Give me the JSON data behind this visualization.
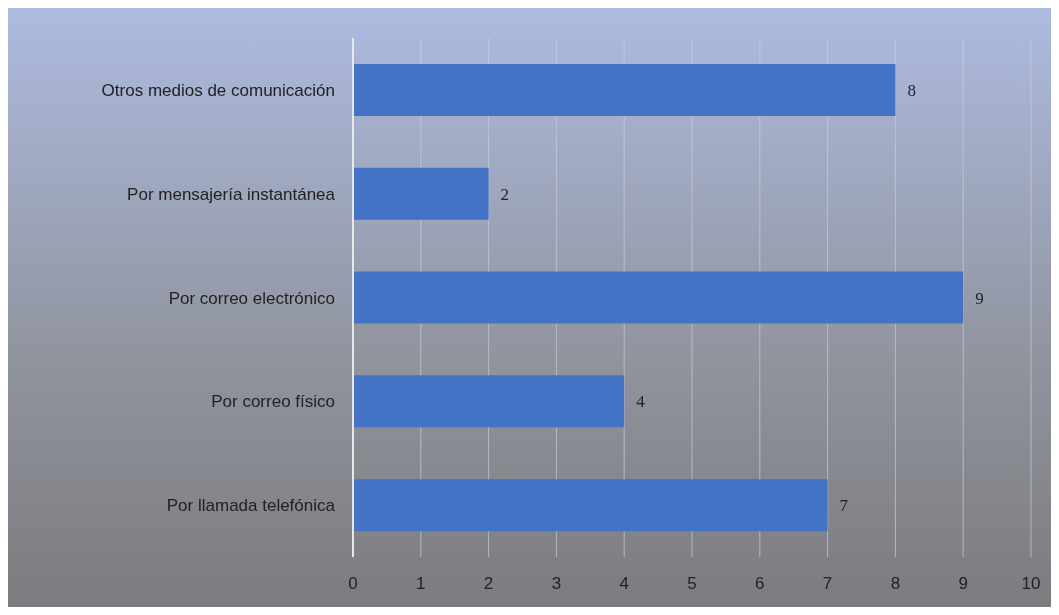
{
  "chart_data": {
    "type": "bar",
    "orientation": "horizontal",
    "categories": [
      "Otros medios de comunicación",
      "Por mensajería instantánea",
      "Por correo electrónico",
      "Por correo físico",
      "Por llamada telefónica"
    ],
    "values": [
      8,
      2,
      9,
      4,
      7
    ],
    "color": "#4472c4",
    "xlim": [
      0,
      10
    ],
    "xticks": [
      0,
      1,
      2,
      3,
      4,
      5,
      6,
      7,
      8,
      9,
      10
    ],
    "grid": "x",
    "data_labels": true
  }
}
